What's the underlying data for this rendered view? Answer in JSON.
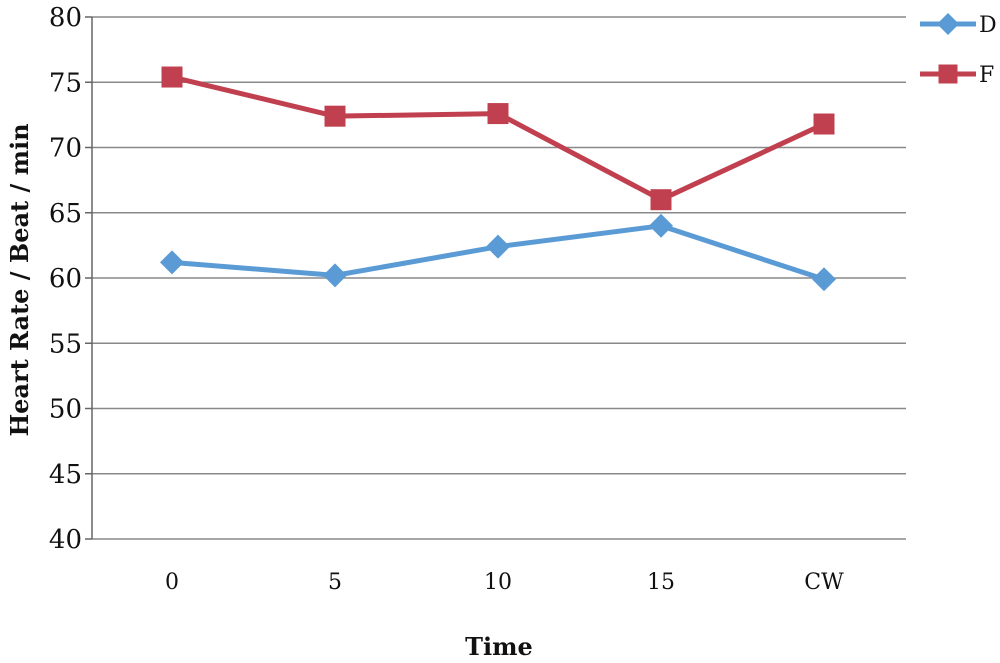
{
  "chart_data": {
    "type": "line",
    "categories": [
      "0",
      "5",
      "10",
      "15",
      "CW"
    ],
    "series": [
      {
        "name": "D",
        "values": [
          61.2,
          60.2,
          62.4,
          64.0,
          59.9
        ],
        "color": "#5B9BD5",
        "marker": "diamond"
      },
      {
        "name": "F",
        "values": [
          75.4,
          72.4,
          72.6,
          66.0,
          71.8
        ],
        "color": "#C0404F",
        "marker": "square"
      }
    ],
    "title": "",
    "xlabel": "Time",
    "ylabel": "Heart Rate / Beat / min",
    "ylim": [
      40,
      80
    ],
    "yticks": [
      40,
      45,
      50,
      55,
      60,
      65,
      70,
      75,
      80
    ],
    "grid": true,
    "legend": "top-right"
  }
}
